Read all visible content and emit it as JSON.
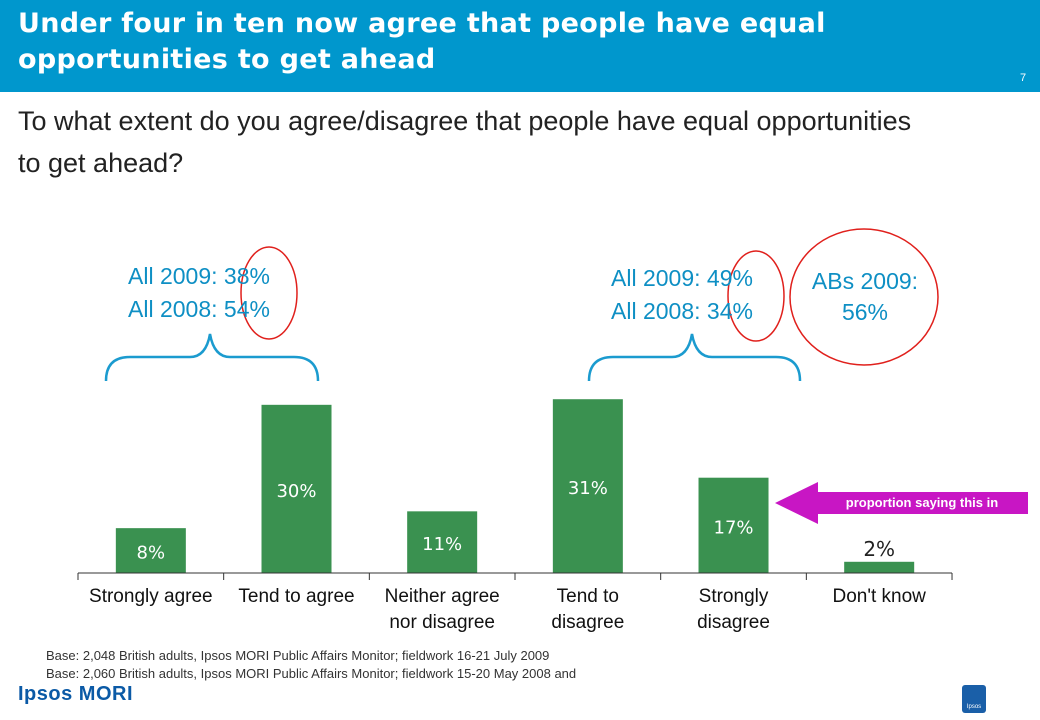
{
  "header": {
    "title": "Under four in ten now agree that people have equal opportunities to get ahead",
    "page_number": "7",
    "background": "#0097cd"
  },
  "question": "To what extent do you agree/disagree that people have equal opportunities to get ahead?",
  "annotations": {
    "agree_2009": "All 2009: 38%",
    "agree_2008": "All 2008: 54%",
    "disagree_2009": "All 2009: 49%",
    "disagree_2008": "All 2008: 34%",
    "abs_line1": "ABs 2009:",
    "abs_line2": "56%",
    "arrow_text": "proportion saying this in"
  },
  "chart_data": {
    "type": "bar",
    "categories": [
      "Strongly agree",
      "Tend to agree",
      "Neither agree nor disagree",
      "Tend to disagree",
      "Strongly disagree",
      "Don't know"
    ],
    "category_lines": [
      [
        "Strongly agree"
      ],
      [
        "Tend to agree"
      ],
      [
        "Neither agree",
        "nor disagree"
      ],
      [
        "Tend to",
        "disagree"
      ],
      [
        "Strongly",
        "disagree"
      ],
      [
        "Don't know"
      ]
    ],
    "values": [
      8,
      30,
      11,
      31,
      17,
      2
    ],
    "value_labels": [
      "8%",
      "30%",
      "11%",
      "31%",
      "17%",
      "2%"
    ],
    "unit": "%",
    "ylim": [
      0,
      33
    ],
    "bar_color": "#3a9150",
    "grid": false,
    "legend": "none"
  },
  "footer": {
    "base1": "Base: 2,048 British adults, Ipsos MORI Public Affairs Monitor; fieldwork 16-21 July 2009",
    "base2": "Base: 2,060 British adults, Ipsos MORI Public Affairs Monitor; fieldwork 15-20 May 2008 and",
    "logo": "Ipsos MORI",
    "badge": "Ipsos"
  },
  "colors": {
    "accent_text": "#0e8fc4",
    "circle": "#e0201c",
    "arrow": "#c816c4",
    "brace": "#1b9bcf"
  }
}
